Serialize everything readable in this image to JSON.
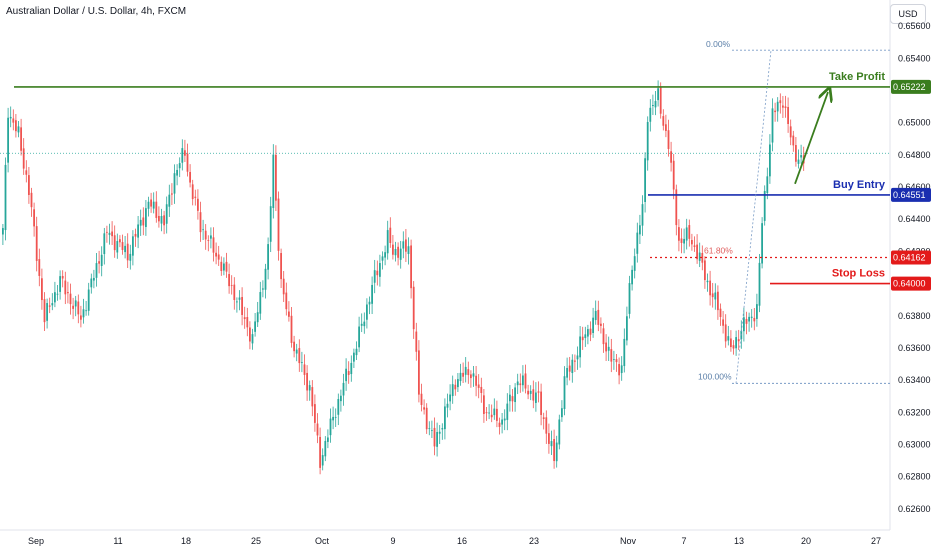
{
  "header": {
    "title": "Australian Dollar / U.S. Dollar, 4h, FXCM",
    "currency_button": "USD"
  },
  "colors": {
    "up": "#26a69a",
    "down": "#ef5350",
    "take_profit": "#3a7d1e",
    "buy_entry": "#1a2eb0",
    "stop": "#e31a1a",
    "fib": "#7a9cc6"
  },
  "chart_data": {
    "type": "candlestick",
    "title": "Australian Dollar / U.S. Dollar, 4h, FXCM",
    "ylim": [
      0.625,
      0.657
    ],
    "y_ticks": [
      "0.65600",
      "0.65400",
      "0.65000",
      "0.64800",
      "0.64600",
      "0.64400",
      "0.64200",
      "0.63800",
      "0.63600",
      "0.63400",
      "0.63200",
      "0.63000",
      "0.62800",
      "0.62600"
    ],
    "x_ticks": [
      "Sep",
      "11",
      "18",
      "25",
      "Oct",
      "9",
      "16",
      "23",
      "Nov",
      "7",
      "13",
      "20",
      "27"
    ],
    "anchors": [
      [
        0,
        0.6432
      ],
      [
        2,
        0.6508
      ],
      [
        6,
        0.6492
      ],
      [
        10,
        0.6458
      ],
      [
        16,
        0.6378
      ],
      [
        22,
        0.6402
      ],
      [
        30,
        0.6378
      ],
      [
        40,
        0.6432
      ],
      [
        48,
        0.6418
      ],
      [
        56,
        0.645
      ],
      [
        62,
        0.6438
      ],
      [
        66,
        0.6468
      ],
      [
        70,
        0.6482
      ],
      [
        72,
        0.6462
      ],
      [
        76,
        0.6436
      ],
      [
        84,
        0.6412
      ],
      [
        90,
        0.639
      ],
      [
        96,
        0.6365
      ],
      [
        102,
        0.642
      ],
      [
        104,
        0.6478
      ],
      [
        107,
        0.64
      ],
      [
        112,
        0.636
      ],
      [
        118,
        0.6335
      ],
      [
        122,
        0.629
      ],
      [
        128,
        0.6322
      ],
      [
        136,
        0.6362
      ],
      [
        142,
        0.6398
      ],
      [
        148,
        0.6428
      ],
      [
        150,
        0.642
      ],
      [
        156,
        0.6422
      ],
      [
        160,
        0.633
      ],
      [
        166,
        0.63
      ],
      [
        174,
        0.634
      ],
      [
        180,
        0.6346
      ],
      [
        186,
        0.632
      ],
      [
        192,
        0.6314
      ],
      [
        198,
        0.634
      ],
      [
        206,
        0.6328
      ],
      [
        212,
        0.629
      ],
      [
        216,
        0.634
      ],
      [
        222,
        0.6362
      ],
      [
        228,
        0.638
      ],
      [
        234,
        0.6352
      ],
      [
        238,
        0.6348
      ],
      [
        242,
        0.6412
      ],
      [
        246,
        0.6446
      ],
      [
        248,
        0.6506
      ],
      [
        252,
        0.6516
      ],
      [
        256,
        0.6486
      ],
      [
        260,
        0.6426
      ],
      [
        264,
        0.643
      ],
      [
        268,
        0.6415
      ],
      [
        272,
        0.6396
      ],
      [
        275,
        0.6385
      ],
      [
        280,
        0.6358
      ],
      [
        284,
        0.6372
      ],
      [
        290,
        0.6384
      ],
      [
        292,
        0.6438
      ],
      [
        296,
        0.6505
      ],
      [
        300,
        0.6515
      ],
      [
        304,
        0.6482
      ],
      [
        308,
        0.6476
      ]
    ],
    "levels": {
      "take_profit": {
        "label": "Take Profit",
        "price_label": "0.65222",
        "value": 0.65222
      },
      "buy_entry": {
        "label": "Buy Entry",
        "price_label": "0.64551",
        "value": 0.64551
      },
      "fib_618": {
        "label": "61.80%",
        "price_label": "0.64162",
        "value": 0.64162
      },
      "stop_loss": {
        "label": "Stop Loss",
        "price_label": "0.64000",
        "value": 0.64
      },
      "fib_0": {
        "label": "0.00%",
        "value": 0.6545
      },
      "fib_100": {
        "label": "100.00%",
        "value": 0.6338
      }
    },
    "current_price_line": 0.6481
  }
}
